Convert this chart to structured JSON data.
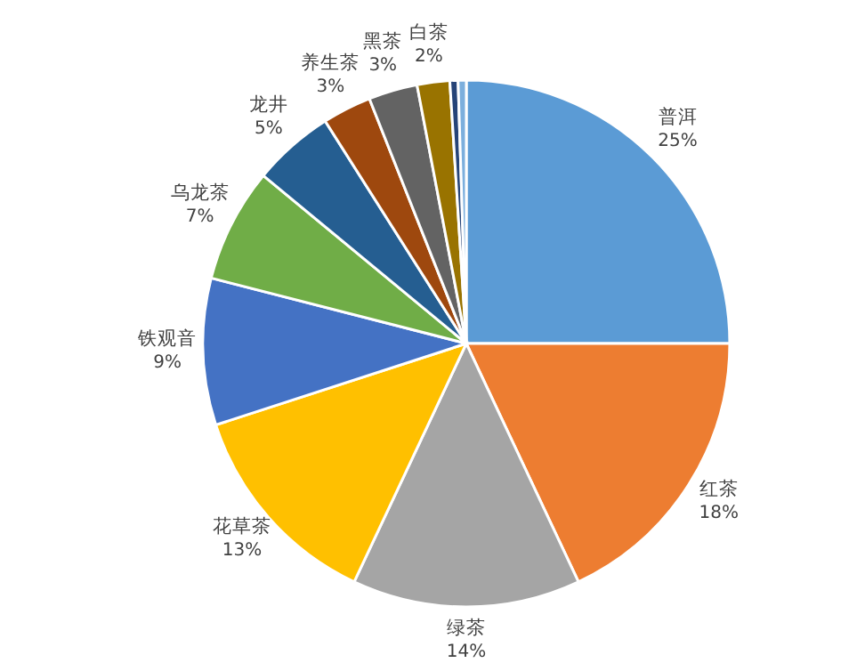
{
  "chart_data": {
    "type": "pie",
    "categories": [
      "普洱",
      "红茶",
      "绿茶",
      "花草茶",
      "铁观音",
      "乌龙茶",
      "龙井",
      "养生茶",
      "黑茶",
      "白茶",
      null,
      null
    ],
    "values": [
      25,
      18,
      14,
      13,
      9,
      7,
      5,
      3,
      3,
      2,
      0.5,
      0.5
    ],
    "value_labels": [
      "25%",
      "18%",
      "14%",
      "13%",
      "9%",
      "7%",
      "5%",
      "3%",
      "3%",
      "2%",
      null,
      null
    ],
    "colors": [
      "#5b9bd5",
      "#ed7d31",
      "#a5a5a5",
      "#ffc000",
      "#4472c4",
      "#70ad47",
      "#255e91",
      "#9e480e",
      "#636363",
      "#997300",
      "#264478",
      "#7cafdd"
    ]
  }
}
